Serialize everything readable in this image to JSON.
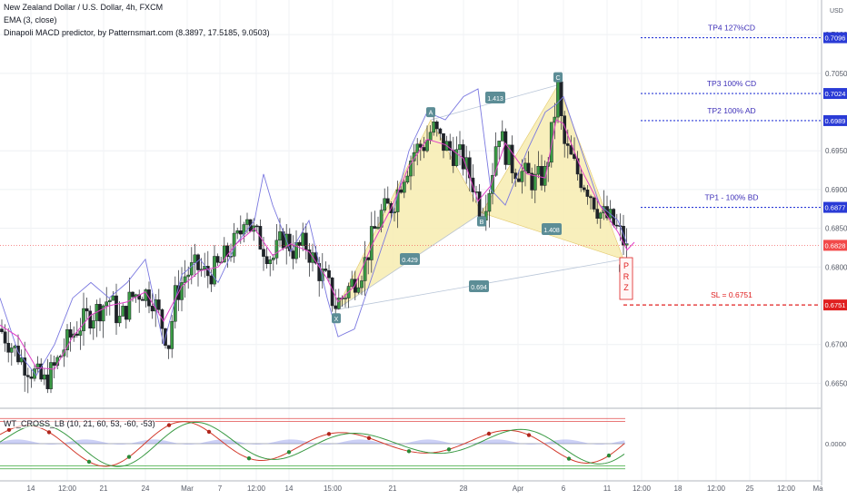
{
  "header": {
    "symbol_line": "New Zealand Dollar / U.S. Dollar, 4h, FXCM",
    "indicator1": "EMA (3, close)",
    "indicator2": "Dinapoli MACD predictor, by Patternsmart.com (8.3897, 17.5185, 9.0503)",
    "subpane_label": "WT_CROSS_LB (10, 21, 60, 53, -60, -53)"
  },
  "axis": {
    "currency": "USD"
  },
  "colors": {
    "up_candle": "#1f2328",
    "down_candle": "#1f2328",
    "ema": "#e040c8",
    "macd_predictor": "#7a78e0",
    "pattern_fill": "#f7ecb0",
    "pattern_label_bg": "#5c8d96",
    "target_line": "#2a3bd6",
    "target_label_text": "#3d2fb8",
    "stop_line": "#e02020",
    "current_price": "#f24a4a",
    "target_price_box": "#2a3bd6"
  },
  "chart_data": [
    {
      "type": "candlestick",
      "title": "",
      "symbol": "NZDUSD",
      "timeframe": "4h",
      "x_tick_labels": [
        "14",
        "12:00",
        "21",
        "24",
        "Mar",
        "7",
        "12:00",
        "14",
        "15:00",
        "21",
        "28",
        "Apr",
        "6",
        "11",
        "12:00",
        "18",
        "12:00",
        "25",
        "12:00",
        "Ma"
      ],
      "y_tick_labels": [
        "0.7100",
        "0.7050",
        "0.6950",
        "0.6900",
        "0.6850",
        "0.6800",
        "0.6700",
        "0.6650"
      ],
      "ylim": [
        0.662,
        0.714
      ],
      "price_path": [
        [
          0,
          0.672
        ],
        [
          12,
          0.67
        ],
        [
          24,
          0.668
        ],
        [
          36,
          0.6665
        ],
        [
          48,
          0.665
        ],
        [
          60,
          0.667
        ],
        [
          72,
          0.67
        ],
        [
          84,
          0.672
        ],
        [
          96,
          0.6735
        ],
        [
          108,
          0.6745
        ],
        [
          120,
          0.676
        ],
        [
          132,
          0.673
        ],
        [
          144,
          0.676
        ],
        [
          156,
          0.677
        ],
        [
          168,
          0.676
        ],
        [
          180,
          0.672
        ],
        [
          186,
          0.67
        ],
        [
          192,
          0.676
        ],
        [
          204,
          0.679
        ],
        [
          216,
          0.68
        ],
        [
          228,
          0.679
        ],
        [
          240,
          0.68
        ],
        [
          252,
          0.682
        ],
        [
          264,
          0.684
        ],
        [
          270,
          0.688
        ],
        [
          276,
          0.685
        ],
        [
          288,
          0.683
        ],
        [
          300,
          0.681
        ],
        [
          312,
          0.684
        ],
        [
          324,
          0.682
        ],
        [
          336,
          0.683
        ],
        [
          348,
          0.68
        ],
        [
          360,
          0.678
        ],
        [
          368,
          0.675
        ],
        [
          376,
          0.676
        ],
        [
          388,
          0.678
        ],
        [
          400,
          0.68
        ],
        [
          410,
          0.684
        ],
        [
          420,
          0.687
        ],
        [
          432,
          0.688
        ],
        [
          444,
          0.692
        ],
        [
          456,
          0.695
        ],
        [
          468,
          0.696
        ],
        [
          476,
          0.698
        ],
        [
          486,
          0.696
        ],
        [
          496,
          0.695
        ],
        [
          508,
          0.694
        ],
        [
          520,
          0.691
        ],
        [
          530,
          0.687
        ],
        [
          540,
          0.691
        ],
        [
          548,
          0.698
        ],
        [
          556,
          0.695
        ],
        [
          564,
          0.693
        ],
        [
          576,
          0.692
        ],
        [
          588,
          0.691
        ],
        [
          600,
          0.692
        ],
        [
          608,
          0.698
        ],
        [
          614,
          0.703
        ],
        [
          620,
          0.696
        ],
        [
          628,
          0.694
        ],
        [
          636,
          0.692
        ],
        [
          648,
          0.69
        ],
        [
          660,
          0.687
        ],
        [
          672,
          0.686
        ],
        [
          684,
          0.684
        ],
        [
          690,
          0.682
        ]
      ],
      "ema_path": [
        [
          0,
          0.6725
        ],
        [
          20,
          0.671
        ],
        [
          40,
          0.667
        ],
        [
          60,
          0.6668
        ],
        [
          80,
          0.671
        ],
        [
          100,
          0.6738
        ],
        [
          120,
          0.675
        ],
        [
          140,
          0.6755
        ],
        [
          160,
          0.6768
        ],
        [
          180,
          0.673
        ],
        [
          200,
          0.6775
        ],
        [
          220,
          0.6795
        ],
        [
          240,
          0.68
        ],
        [
          260,
          0.683
        ],
        [
          280,
          0.685
        ],
        [
          300,
          0.6815
        ],
        [
          320,
          0.683
        ],
        [
          340,
          0.682
        ],
        [
          360,
          0.6785
        ],
        [
          372,
          0.6755
        ],
        [
          390,
          0.6775
        ],
        [
          410,
          0.683
        ],
        [
          430,
          0.6875
        ],
        [
          450,
          0.693
        ],
        [
          470,
          0.6965
        ],
        [
          490,
          0.6958
        ],
        [
          510,
          0.694
        ],
        [
          526,
          0.6885
        ],
        [
          540,
          0.6905
        ],
        [
          556,
          0.696
        ],
        [
          580,
          0.692
        ],
        [
          600,
          0.6915
        ],
        [
          612,
          0.699
        ],
        [
          620,
          0.6985
        ],
        [
          640,
          0.6925
        ],
        [
          660,
          0.688
        ],
        [
          680,
          0.6845
        ],
        [
          690,
          0.6822
        ],
        [
          698,
          0.6832
        ]
      ],
      "macd_predictor_path": [
        [
          0,
          0.676
        ],
        [
          20,
          0.669
        ],
        [
          40,
          0.666
        ],
        [
          60,
          0.67
        ],
        [
          80,
          0.676
        ],
        [
          100,
          0.678
        ],
        [
          120,
          0.676
        ],
        [
          140,
          0.678
        ],
        [
          160,
          0.681
        ],
        [
          180,
          0.67
        ],
        [
          200,
          0.679
        ],
        [
          220,
          0.681
        ],
        [
          240,
          0.678
        ],
        [
          260,
          0.683
        ],
        [
          280,
          0.686
        ],
        [
          290,
          0.692
        ],
        [
          300,
          0.688
        ],
        [
          320,
          0.682
        ],
        [
          340,
          0.686
        ],
        [
          360,
          0.676
        ],
        [
          372,
          0.671
        ],
        [
          390,
          0.672
        ],
        [
          410,
          0.679
        ],
        [
          430,
          0.686
        ],
        [
          450,
          0.695
        ],
        [
          470,
          0.7
        ],
        [
          490,
          0.699
        ],
        [
          510,
          0.702
        ],
        [
          526,
          0.703
        ],
        [
          540,
          0.69
        ],
        [
          556,
          0.688
        ],
        [
          580,
          0.695
        ],
        [
          600,
          0.7
        ],
        [
          612,
          0.701
        ],
        [
          620,
          0.702
        ],
        [
          640,
          0.695
        ],
        [
          660,
          0.688
        ],
        [
          680,
          0.686
        ],
        [
          690,
          0.683
        ]
      ]
    },
    {
      "type": "harmonic_pattern",
      "points": [
        {
          "label": "X",
          "price": 0.6745
        },
        {
          "label": "A",
          "price": 0.699
        },
        {
          "label": "B",
          "price": 0.687
        },
        {
          "label": "C",
          "price": 0.7035
        },
        {
          "label": "D",
          "price": 0.681
        }
      ],
      "ratios": [
        "1.413",
        "0.429",
        "1.408",
        "0.694"
      ],
      "prz_label": [
        "P",
        "R",
        "Z"
      ]
    },
    {
      "type": "price_levels",
      "levels": [
        {
          "name": "TP4 127%CD",
          "value": "0.7096",
          "price": 0.7096
        },
        {
          "name": "TP3 100% CD",
          "value": "0.7024",
          "price": 0.7024
        },
        {
          "name": "TP2 100% AD",
          "value": "0.6989",
          "price": 0.6989
        },
        {
          "name": "TP1 - 100% BD",
          "value": "0.6877",
          "price": 0.6877
        },
        {
          "name": "SL = 0.6751",
          "value": "0.6751",
          "price": 0.6751
        }
      ],
      "current_price": {
        "value": "0.6828",
        "price": 0.6828
      }
    },
    {
      "type": "oscillator",
      "title": "WT_CROSS_LB (10, 21, 60, 53, -60, -53)",
      "y_tick_labels": [
        "0.0000"
      ],
      "ylim": [
        -80,
        80
      ],
      "levels": [
        60,
        53,
        0,
        -53,
        -60
      ]
    }
  ]
}
